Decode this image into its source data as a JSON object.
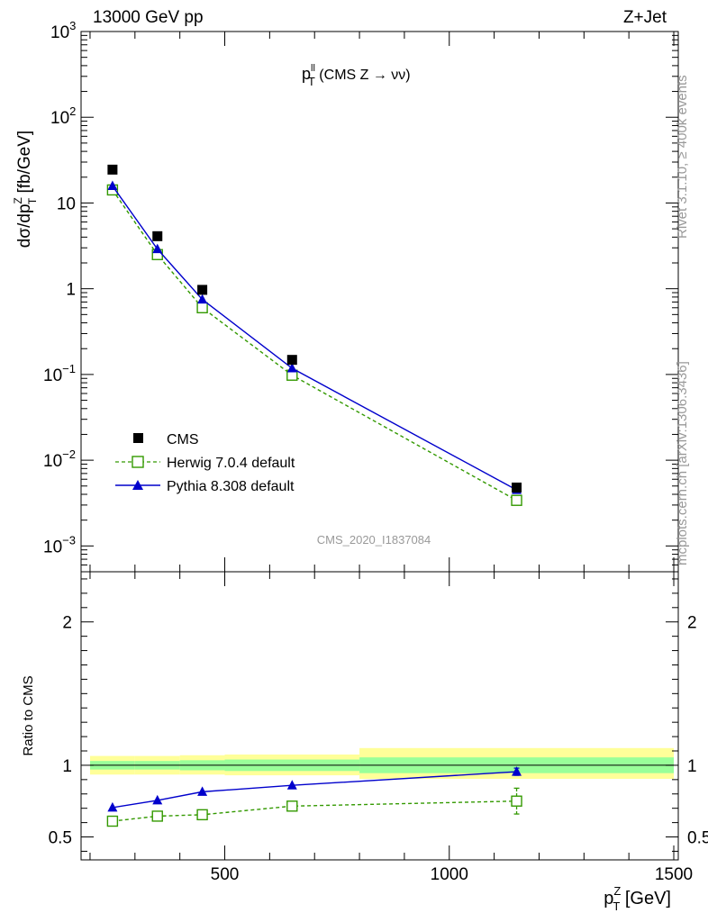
{
  "header": {
    "left": "13000 GeV pp",
    "right": "Z+Jet"
  },
  "side_labels": {
    "rivet": "Rivet 3.1.10, ≥ 400k events",
    "mcplots": "mcplots.cern.ch [arXiv:1306.3436]"
  },
  "colors": {
    "cms": "#000000",
    "herwig": "#339900",
    "pythia": "#0000cc",
    "band_yellow": "#ffff99",
    "band_green": "#99ff99",
    "watermark": "#999999"
  },
  "chart_data": [
    {
      "type": "line",
      "title": {
        "main": "p",
        "sup": "ll",
        "sub": "T",
        "rest": " (CMS Z → νν)"
      },
      "ylabel": {
        "a": "dσ/dp",
        "sup": "Z",
        "sub": "T",
        "b": " [fb/GeV]"
      },
      "yscale": "log",
      "ylim": [
        0.0005,
        1000
      ],
      "xlim": [
        180,
        1510
      ],
      "y_ticks": [
        {
          "v": 0.001,
          "base": "10",
          "exp": "−3"
        },
        {
          "v": 0.01,
          "base": "10",
          "exp": "−2"
        },
        {
          "v": 0.1,
          "base": "10",
          "exp": "−1"
        },
        {
          "v": 1,
          "base": "1",
          "exp": ""
        },
        {
          "v": 10,
          "base": "10",
          "exp": ""
        },
        {
          "v": 100,
          "base": "10",
          "exp": "2"
        },
        {
          "v": 1000,
          "base": "10",
          "exp": "3"
        }
      ],
      "watermark": "CMS_2020_I1837084",
      "legend_position": "bottom-left",
      "series": [
        {
          "name": "CMS",
          "style": "square",
          "x": [
            250,
            350,
            450,
            650,
            1150
          ],
          "y": [
            24.5,
            4.1,
            0.97,
            0.148,
            0.0048
          ]
        },
        {
          "name": "Herwig 7.0.4 default",
          "style": "open-square-dashed",
          "x": [
            250,
            350,
            450,
            650,
            1150
          ],
          "y": [
            14.2,
            2.5,
            0.6,
            0.098,
            0.0034
          ]
        },
        {
          "name": "Pythia 8.308 default",
          "style": "triangle-solid",
          "x": [
            250,
            350,
            450,
            650,
            1150
          ],
          "y": [
            15.8,
            2.9,
            0.75,
            0.118,
            0.0045
          ]
        }
      ]
    },
    {
      "type": "line",
      "ylabel": "Ratio to CMS",
      "xlabel": {
        "a": "p",
        "sup": "Z",
        "sub": "T",
        "b": " [GeV]"
      },
      "xlim": [
        180,
        1510
      ],
      "ylim": [
        0.34,
        2.35
      ],
      "x_ticks": [
        500,
        1000,
        1500
      ],
      "y_ticks": [
        0.5,
        1,
        2
      ],
      "bands": [
        {
          "x0": 200,
          "x1": 300,
          "y_lo_tot": 0.935,
          "y_hi_tot": 1.065,
          "y_lo_stat": 0.97,
          "y_hi_stat": 1.03
        },
        {
          "x0": 300,
          "x1": 400,
          "y_lo_tot": 0.935,
          "y_hi_tot": 1.065,
          "y_lo_stat": 0.97,
          "y_hi_stat": 1.03
        },
        {
          "x0": 400,
          "x1": 500,
          "y_lo_tot": 0.935,
          "y_hi_tot": 1.07,
          "y_lo_stat": 0.965,
          "y_hi_stat": 1.035
        },
        {
          "x0": 500,
          "x1": 800,
          "y_lo_tot": 0.93,
          "y_hi_tot": 1.075,
          "y_lo_stat": 0.96,
          "y_hi_stat": 1.04
        },
        {
          "x0": 800,
          "x1": 1500,
          "y_lo_tot": 0.905,
          "y_hi_tot": 1.12,
          "y_lo_stat": 0.945,
          "y_hi_stat": 1.055
        }
      ],
      "series": [
        {
          "name": "Herwig 7.0.4 default",
          "style": "open-square-dashed",
          "x": [
            250,
            350,
            450,
            650,
            1150
          ],
          "y": [
            0.61,
            0.645,
            0.655,
            0.715,
            0.75
          ],
          "err": [
            0,
            0,
            0,
            0,
            0.09
          ]
        },
        {
          "name": "Pythia 8.308 default",
          "style": "triangle-solid",
          "x": [
            250,
            350,
            450,
            650,
            1150
          ],
          "y": [
            0.705,
            0.755,
            0.815,
            0.86,
            0.955
          ],
          "err": [
            0,
            0,
            0,
            0,
            0.025
          ]
        }
      ]
    }
  ]
}
